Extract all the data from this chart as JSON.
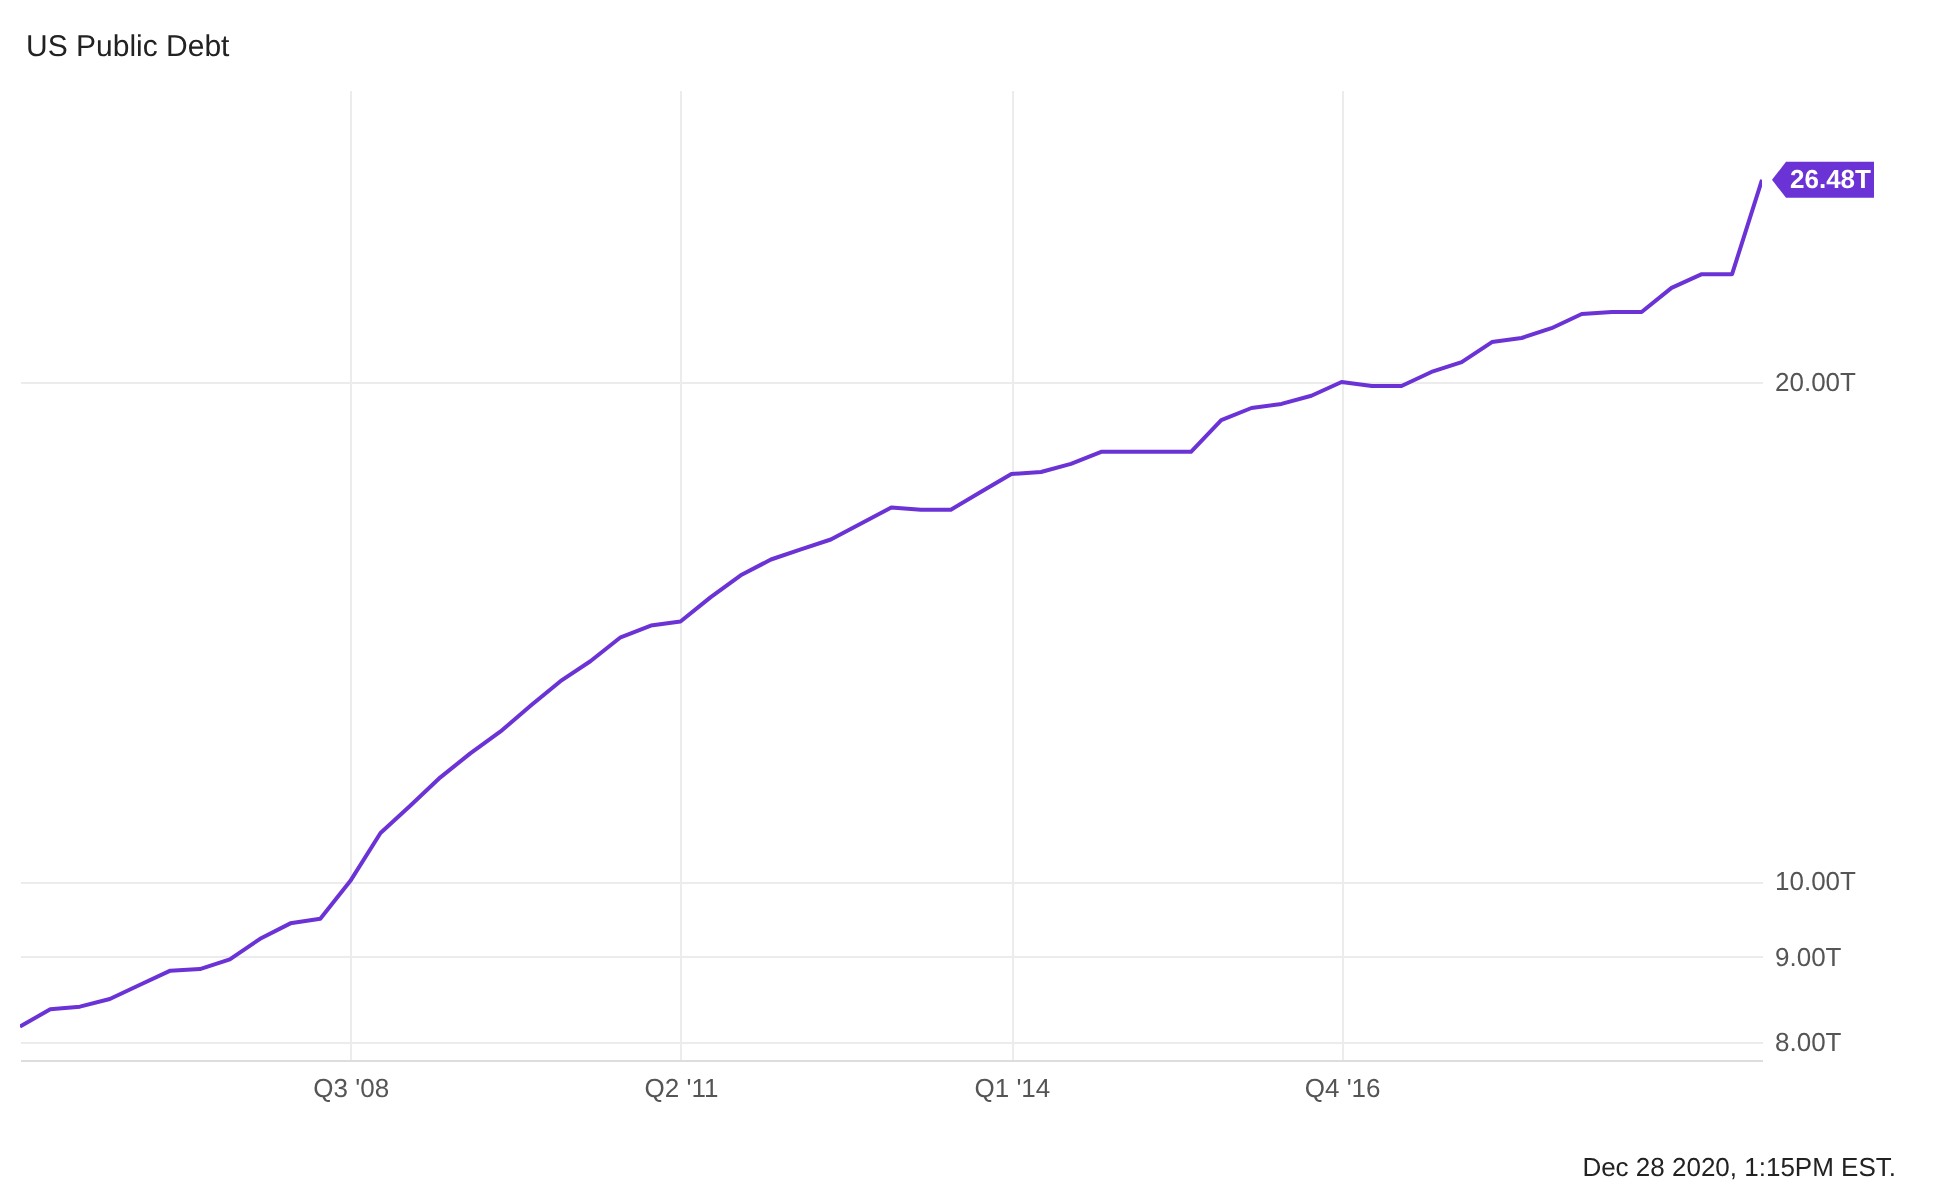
{
  "chart_data": {
    "type": "line",
    "title": "US Public Debt",
    "x": [
      "2005-10",
      "2006-01",
      "2006-04",
      "2006-07",
      "2006-10",
      "2007-01",
      "2007-04",
      "2007-07",
      "2007-10",
      "2008-01",
      "2008-04",
      "2008-07",
      "2008-10",
      "2009-01",
      "2009-04",
      "2009-07",
      "2009-10",
      "2010-01",
      "2010-04",
      "2010-07",
      "2010-10",
      "2011-01",
      "2011-04",
      "2011-07",
      "2011-10",
      "2012-01",
      "2012-04",
      "2012-07",
      "2012-10",
      "2013-01",
      "2013-04",
      "2013-07",
      "2013-10",
      "2014-01",
      "2014-04",
      "2014-07",
      "2014-10",
      "2015-01",
      "2015-04",
      "2015-07",
      "2015-10",
      "2016-01",
      "2016-04",
      "2016-07",
      "2016-10",
      "2017-01",
      "2017-04",
      "2017-07",
      "2017-10",
      "2018-01",
      "2018-04",
      "2018-07",
      "2018-10",
      "2019-01",
      "2019-04",
      "2019-07",
      "2019-10",
      "2020-01",
      "2020-04"
    ],
    "values": [
      8.17,
      8.37,
      8.4,
      8.49,
      8.66,
      8.83,
      8.85,
      8.97,
      9.23,
      9.43,
      9.49,
      10.0,
      10.69,
      11.11,
      11.55,
      11.94,
      12.31,
      12.76,
      13.2,
      13.57,
      14.03,
      14.26,
      14.34,
      14.83,
      15.29,
      15.63,
      15.85,
      16.07,
      16.43,
      16.8,
      16.75,
      16.75,
      17.17,
      17.6,
      17.65,
      17.85,
      18.15,
      18.15,
      18.15,
      18.15,
      18.97,
      19.29,
      19.4,
      19.62,
      20.0,
      19.89,
      19.89,
      20.28,
      20.56,
      21.14,
      21.26,
      21.55,
      21.98,
      22.04,
      22.04,
      22.79,
      23.23,
      23.23,
      26.48
    ],
    "value_labels": [
      null,
      null,
      null,
      null,
      null,
      null,
      null,
      null,
      null,
      null,
      null,
      null,
      null,
      null,
      null,
      null,
      null,
      null,
      null,
      null,
      null,
      null,
      null,
      null,
      null,
      null,
      null,
      null,
      null,
      null,
      null,
      null,
      null,
      null,
      null,
      null,
      null,
      null,
      null,
      null,
      null,
      null,
      null,
      null,
      null,
      null,
      null,
      null,
      null,
      null,
      null,
      null,
      null,
      null,
      null,
      null,
      null,
      null,
      "26.48T"
    ],
    "color": "#6b33d6",
    "log": true,
    "grid": true,
    "xlim": [
      "2005-10",
      "2020-04"
    ],
    "xticks": [
      {
        "value": "2008-07",
        "label": "Q3 '08"
      },
      {
        "value": "2011-04",
        "label": "Q2 '11"
      },
      {
        "value": "2014-01",
        "label": "Q1 '14"
      },
      {
        "value": "2016-10",
        "label": "Q4 '16"
      }
    ],
    "ylim": [
      7.8,
      30
    ],
    "yticks": [
      {
        "value": 8,
        "label": "8.00T"
      },
      {
        "value": 9,
        "label": "9.00T"
      },
      {
        "value": 10,
        "label": "10.00T"
      },
      {
        "value": 20,
        "label": "20.00T"
      }
    ],
    "annotations": [
      "Dec 28 2020, 1:15PM EST."
    ]
  }
}
